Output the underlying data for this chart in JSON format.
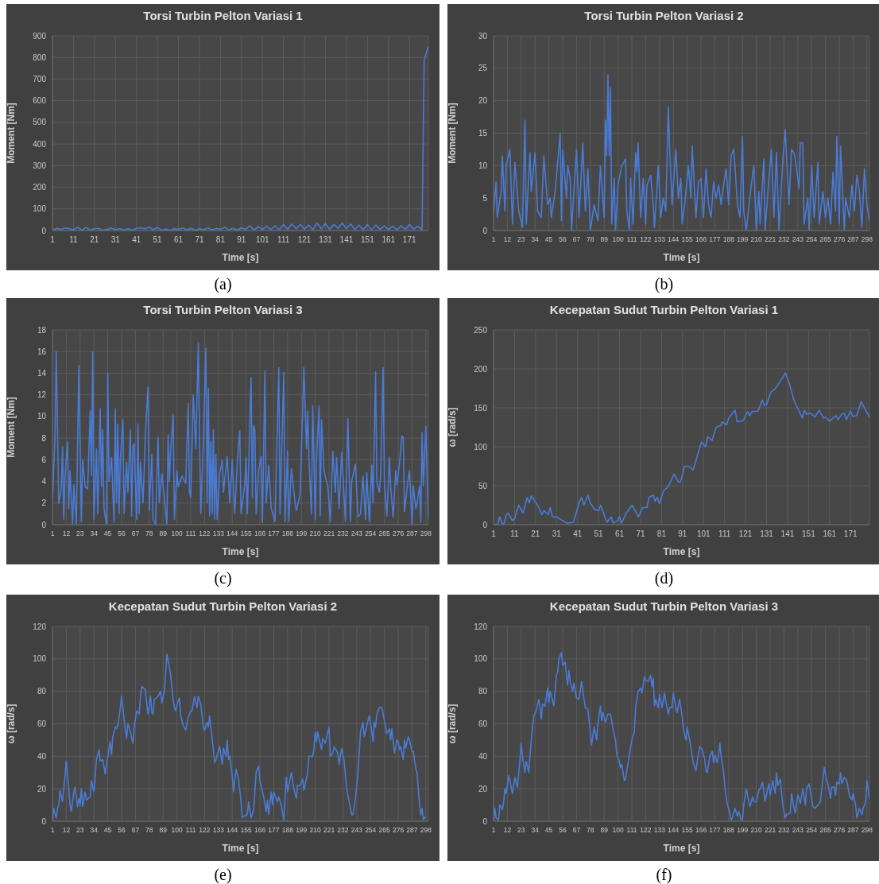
{
  "chart_data": [
    {
      "type": "line",
      "title": "Torsi Turbin Pelton Variasi 1",
      "xlabel": "Time [s]",
      "ylabel": "Moment [Nm]",
      "color": "#4a7bd6",
      "grid": true,
      "annotations": [
        "(a)"
      ],
      "xlim": [
        1,
        180
      ],
      "xticks": [
        1,
        11,
        21,
        31,
        41,
        51,
        61,
        71,
        81,
        91,
        101,
        111,
        121,
        131,
        141,
        151,
        161,
        171
      ],
      "ylim": [
        0,
        900
      ],
      "yticks": [
        0,
        100,
        200,
        300,
        400,
        500,
        600,
        700,
        800,
        900
      ],
      "x": [
        1,
        3,
        5,
        7,
        9,
        11,
        13,
        15,
        17,
        19,
        21,
        23,
        25,
        27,
        29,
        31,
        33,
        35,
        37,
        39,
        41,
        43,
        45,
        47,
        49,
        51,
        53,
        55,
        57,
        59,
        61,
        63,
        65,
        67,
        69,
        71,
        73,
        75,
        77,
        79,
        81,
        83,
        85,
        87,
        89,
        91,
        93,
        95,
        97,
        99,
        101,
        103,
        105,
        107,
        109,
        111,
        113,
        115,
        117,
        119,
        121,
        123,
        125,
        127,
        129,
        131,
        133,
        135,
        137,
        139,
        141,
        143,
        145,
        147,
        149,
        151,
        153,
        155,
        157,
        159,
        161,
        163,
        165,
        167,
        169,
        171,
        173,
        175,
        177,
        178,
        180
      ],
      "values": [
        0,
        10,
        5,
        12,
        8,
        3,
        15,
        2,
        14,
        3,
        8,
        10,
        1,
        5,
        12,
        4,
        9,
        3,
        8,
        2,
        10,
        12,
        8,
        16,
        4,
        14,
        2,
        6,
        1,
        8,
        5,
        12,
        3,
        10,
        2,
        8,
        4,
        12,
        3,
        10,
        5,
        15,
        4,
        10,
        3,
        12,
        6,
        22,
        2,
        18,
        5,
        20,
        4,
        22,
        3,
        28,
        5,
        30,
        8,
        28,
        6,
        25,
        4,
        35,
        8,
        32,
        6,
        28,
        10,
        35,
        8,
        30,
        5,
        25,
        4,
        28,
        3,
        25,
        5,
        22,
        4,
        20,
        3,
        22,
        5,
        28,
        6,
        20,
        3,
        790,
        850
      ]
    },
    {
      "type": "line",
      "title": "Torsi Turbin Pelton Variasi 2",
      "xlabel": "Time [s]",
      "ylabel": "Moment [Nm]",
      "color": "#4a7bd6",
      "grid": true,
      "annotations": [
        "(b)"
      ],
      "xlim": [
        1,
        300
      ],
      "xticks": [
        1,
        12,
        23,
        34,
        45,
        56,
        67,
        78,
        89,
        100,
        111,
        122,
        133,
        144,
        155,
        166,
        177,
        188,
        199,
        210,
        221,
        232,
        243,
        254,
        265,
        276,
        287,
        298
      ],
      "ylim": [
        0,
        30
      ],
      "yticks": [
        0,
        5,
        10,
        15,
        20,
        25,
        30
      ],
      "x": [
        1,
        3,
        4,
        7,
        8,
        10,
        11,
        14,
        16,
        18,
        21,
        24,
        26,
        27,
        30,
        31,
        34,
        36,
        39,
        41,
        44,
        46,
        47,
        50,
        54,
        55,
        56,
        59,
        60,
        62,
        63,
        67,
        69,
        72,
        74,
        76,
        78,
        81,
        84,
        86,
        89,
        90,
        91,
        92,
        93,
        94,
        95,
        97,
        98,
        100,
        103,
        106,
        107,
        109,
        110,
        112,
        114,
        115,
        116,
        118,
        120,
        122,
        123,
        126,
        128,
        129,
        132,
        134,
        136,
        138,
        140,
        141,
        143,
        146,
        148,
        150,
        151,
        153,
        156,
        158,
        159,
        162,
        164,
        166,
        168,
        170,
        172,
        174,
        176,
        178,
        180,
        182,
        184,
        186,
        188,
        190,
        192,
        193,
        195,
        197,
        199,
        200,
        202,
        206,
        208,
        210,
        212,
        213,
        216,
        217,
        220,
        222,
        224,
        226,
        228,
        231,
        233,
        236,
        238,
        240,
        241,
        244,
        245,
        247,
        248,
        251,
        252,
        254,
        256,
        259,
        260,
        263,
        265,
        267,
        269,
        271,
        273,
        274,
        276,
        277,
        280,
        281,
        284,
        286,
        288,
        290,
        292,
        294,
        296,
        298,
        300
      ],
      "values": [
        2.5,
        7.5,
        2,
        6,
        11.5,
        3,
        10,
        12.5,
        1,
        10.5,
        3,
        0.5,
        17,
        1,
        12,
        6,
        12,
        3,
        2,
        11.5,
        4,
        5,
        2,
        6,
        15,
        1.5,
        12.5,
        5,
        10,
        8,
        0,
        12.5,
        2,
        13.5,
        3,
        9.5,
        0,
        4,
        1.5,
        10,
        2,
        17,
        11.5,
        24,
        11.5,
        22,
        1,
        8,
        0,
        7,
        10,
        11,
        3,
        0,
        8,
        1,
        12,
        9,
        13.5,
        2,
        8,
        1,
        7,
        8.5,
        4,
        0.5,
        10,
        2,
        5,
        3,
        19,
        13,
        4,
        12.5,
        5,
        8,
        1,
        4,
        10,
        5,
        13,
        2,
        7.5,
        8,
        2,
        9.5,
        4,
        2,
        7.5,
        5,
        7,
        4,
        7,
        9.5,
        4,
        11.5,
        12.5,
        10,
        4,
        2,
        14.5,
        3,
        0,
        7,
        10,
        0,
        6,
        1,
        11,
        0,
        8,
        12.5,
        2,
        12,
        0,
        10.5,
        15.5,
        4,
        12.5,
        12,
        11,
        6.5,
        13.5,
        13.5,
        1,
        5,
        0,
        10,
        2,
        10.5,
        1,
        6,
        2,
        5,
        1,
        9,
        3,
        14.5,
        1,
        13,
        0,
        5,
        2,
        7,
        3,
        8.5,
        6,
        0.5,
        9.5,
        4,
        1.5
      ]
    },
    {
      "type": "line",
      "title": "Torsi Turbin Pelton Variasi 3",
      "xlabel": "Time [s]",
      "ylabel": "Moment [Nm]",
      "color": "#4a7bd6",
      "grid": true,
      "annotations": [
        "(c)"
      ],
      "xlim": [
        1,
        300
      ],
      "xticks": [
        1,
        12,
        23,
        34,
        45,
        56,
        67,
        78,
        89,
        100,
        111,
        122,
        133,
        144,
        155,
        166,
        177,
        188,
        199,
        210,
        221,
        232,
        243,
        254,
        265,
        276,
        287,
        298
      ],
      "ylim": [
        0,
        18
      ],
      "yticks": [
        0,
        2,
        4,
        6,
        8,
        10,
        12,
        14,
        16,
        18
      ],
      "x": [
        1,
        3,
        4,
        6,
        8,
        9,
        10,
        11,
        13,
        14,
        15,
        17,
        18,
        20,
        22,
        24,
        25,
        27,
        29,
        31,
        32,
        33,
        34,
        36,
        37,
        39,
        40,
        41,
        42,
        44,
        45,
        46,
        48,
        50,
        51,
        52,
        53,
        54,
        55,
        57,
        58,
        60,
        61,
        63,
        64,
        65,
        66,
        68,
        69,
        70,
        71,
        73,
        75,
        77,
        78,
        80,
        81,
        83,
        85,
        86,
        88,
        90,
        92,
        93,
        94,
        95,
        97,
        98,
        100,
        101,
        104,
        107,
        109,
        110,
        111,
        113,
        115,
        117,
        118,
        119,
        121,
        123,
        124,
        125,
        126,
        127,
        128,
        129,
        130,
        131,
        132,
        134,
        136,
        137,
        140,
        142,
        144,
        146,
        148,
        150,
        151,
        154,
        155,
        156,
        159,
        160,
        161,
        162,
        163,
        165,
        167,
        168,
        170,
        171,
        173,
        175,
        178,
        181,
        182,
        185,
        186,
        188,
        189,
        191,
        194,
        195,
        198,
        201,
        203,
        204,
        205,
        207,
        208,
        210,
        211,
        213,
        214,
        215,
        217,
        220,
        222,
        224,
        226,
        227,
        229,
        231,
        233,
        234,
        236,
        238,
        239,
        242,
        244,
        246,
        248,
        250,
        251,
        253,
        255,
        256,
        258,
        259,
        261,
        262,
        264,
        265,
        267,
        269,
        270,
        272,
        274,
        275,
        277,
        279,
        280,
        281,
        284,
        285,
        287,
        288,
        290,
        291,
        293,
        294,
        295,
        296,
        298,
        300
      ],
      "values": [
        2.3,
        8,
        16,
        2,
        3.3,
        7.2,
        0.5,
        4.5,
        7.7,
        1.5,
        5,
        0,
        3.7,
        0,
        14.7,
        0.3,
        6,
        3.5,
        3.3,
        10.5,
        4.5,
        16,
        0.5,
        7,
        1,
        10.7,
        3.5,
        8.8,
        1.5,
        0,
        14,
        4,
        6.2,
        0.2,
        10.7,
        2,
        9.3,
        1,
        6,
        9.7,
        1,
        5.8,
        3,
        8.8,
        0.8,
        7.2,
        7.5,
        0.5,
        9.3,
        1,
        5.8,
        2,
        8.5,
        12.7,
        1.3,
        6.5,
        0.5,
        0,
        8.1,
        2,
        4.7,
        2.5,
        0,
        8.3,
        4,
        6.8,
        10.2,
        0.5,
        5,
        3.5,
        4.5,
        3.8,
        11.2,
        3,
        2.5,
        12,
        7,
        16.8,
        8,
        1,
        7.5,
        16.3,
        2,
        12.6,
        0.8,
        7.7,
        1,
        8.8,
        0.5,
        6.5,
        0.5,
        4.7,
        6,
        3,
        6.3,
        2,
        6,
        1,
        5.8,
        8.7,
        1,
        3.8,
        6.2,
        1,
        13.6,
        2.5,
        9.2,
        8.7,
        1,
        5,
        6.3,
        0.2,
        14.2,
        2,
        5.5,
        1.5,
        0.3,
        14.5,
        1,
        14.1,
        0.3,
        6.8,
        0.3,
        5.2,
        2,
        1.3,
        2.8,
        14.5,
        7,
        10.5,
        6,
        1,
        11,
        0.5,
        6,
        11,
        0.8,
        9.7,
        5,
        3.5,
        0.3,
        6.8,
        3,
        6.2,
        1.5,
        6.7,
        2.5,
        0.3,
        9.8,
        0.3,
        4,
        5.6,
        0.7,
        1,
        4.5,
        0.5,
        4.8,
        0.3,
        5.5,
        2,
        14.1,
        4,
        3,
        4.5,
        14.5,
        4,
        0.8,
        6.2,
        3.5,
        0.7,
        5,
        3.7,
        5.6,
        8.2,
        8.1,
        1.2,
        4.3,
        5,
        0,
        3.6,
        1.5,
        2,
        3.6,
        0.2,
        8.5,
        3.6,
        9.1,
        0.5
      ]
    },
    {
      "type": "line",
      "title": "Kecepatan Sudut Turbin Pelton Variasi 1",
      "xlabel": "Time [s]",
      "ylabel": "ω [rad/s]",
      "color": "#4a7bd6",
      "grid": true,
      "annotations": [
        "(d)"
      ],
      "xlim": [
        1,
        180
      ],
      "xticks": [
        1,
        11,
        21,
        31,
        41,
        51,
        61,
        71,
        81,
        91,
        101,
        111,
        121,
        131,
        141,
        151,
        161,
        171
      ],
      "ylim": [
        0,
        250
      ],
      "yticks": [
        0,
        50,
        100,
        150,
        200,
        250
      ],
      "x": [
        1,
        3,
        4,
        5,
        6,
        7,
        8,
        10,
        11,
        13,
        15,
        17,
        18,
        19,
        22,
        24,
        25,
        27,
        28,
        29,
        31,
        34,
        36,
        39,
        42,
        43,
        44,
        46,
        47,
        49,
        51,
        52,
        54,
        55,
        57,
        58,
        60,
        61,
        62,
        64,
        67,
        70,
        72,
        74,
        75,
        77,
        78,
        79,
        80,
        82,
        84,
        87,
        89,
        90,
        92,
        94,
        96,
        98,
        100,
        102,
        103,
        105,
        107,
        109,
        110,
        112,
        113,
        116,
        117,
        120,
        122,
        123,
        124,
        127,
        129,
        130,
        131,
        133,
        135,
        137,
        139,
        140,
        142,
        144,
        148,
        149,
        150,
        152,
        154,
        156,
        158,
        159,
        161,
        164,
        165,
        167,
        168,
        169,
        171,
        172,
        174,
        176,
        178,
        180
      ],
      "values": [
        0,
        1,
        10,
        2,
        1,
        12,
        15,
        5,
        8,
        25,
        15,
        35,
        28,
        37,
        25,
        13,
        18,
        13,
        22,
        10,
        10,
        5,
        2,
        3,
        30,
        35,
        25,
        38,
        28,
        20,
        18,
        25,
        10,
        3,
        10,
        2,
        5,
        10,
        2,
        14,
        25,
        10,
        22,
        22,
        35,
        38,
        30,
        35,
        27,
        44,
        48,
        65,
        55,
        55,
        75,
        75,
        70,
        88,
        106,
        100,
        113,
        108,
        125,
        127,
        132,
        128,
        137,
        147,
        132,
        134,
        145,
        140,
        145,
        146,
        160,
        153,
        154,
        170,
        174,
        182,
        190,
        195,
        180,
        160,
        137,
        147,
        142,
        143,
        138,
        147,
        137,
        138,
        133,
        140,
        135,
        142,
        143,
        135,
        146,
        139,
        140,
        158,
        148,
        138
      ]
    },
    {
      "type": "line",
      "title": "Kecepatan Sudut Turbin Pelton Variasi 2",
      "xlabel": "Time [s]",
      "ylabel": "ω [rad/s]",
      "color": "#4a7bd6",
      "grid": true,
      "annotations": [
        "(e)"
      ],
      "xlim": [
        1,
        300
      ],
      "xticks": [
        1,
        12,
        23,
        34,
        45,
        56,
        67,
        78,
        89,
        100,
        111,
        122,
        133,
        144,
        155,
        166,
        177,
        188,
        199,
        210,
        221,
        232,
        243,
        254,
        265,
        276,
        287,
        298
      ],
      "ylim": [
        0,
        120
      ],
      "yticks": [
        0,
        20,
        40,
        60,
        80,
        100,
        120
      ],
      "x": [
        1,
        2,
        4,
        5,
        6,
        7,
        9,
        10,
        12,
        14,
        15,
        16,
        18,
        19,
        21,
        22,
        23,
        24,
        25,
        27,
        28,
        31,
        32,
        34,
        36,
        38,
        39,
        41,
        43,
        45,
        47,
        48,
        49,
        51,
        52,
        53,
        55,
        56,
        57,
        59,
        60,
        61,
        63,
        65,
        66,
        68,
        70,
        71,
        72,
        75,
        76,
        77,
        79,
        80,
        81,
        82,
        85,
        87,
        88,
        90,
        91,
        92,
        94,
        95,
        97,
        98,
        99,
        100,
        102,
        103,
        105,
        107,
        109,
        111,
        112,
        114,
        116,
        117,
        119,
        121,
        122,
        124,
        125,
        126,
        128,
        130,
        131,
        134,
        136,
        137,
        139,
        140,
        141,
        142,
        144,
        145,
        147,
        149,
        151,
        152,
        153,
        156,
        157,
        159,
        161,
        163,
        165,
        166,
        169,
        171,
        172,
        173,
        175,
        176,
        177,
        180,
        181,
        183,
        185,
        187,
        188,
        191,
        193,
        195,
        196,
        198,
        200,
        201,
        204,
        205,
        208,
        209,
        210,
        211,
        212,
        215,
        216,
        218,
        221,
        222,
        224,
        225,
        228,
        229,
        231,
        233,
        235,
        236,
        239,
        240,
        242,
        244,
        246,
        248,
        249,
        252,
        253,
        255,
        256,
        257,
        258,
        259,
        261,
        263,
        264,
        266,
        267,
        269,
        270,
        271,
        273,
        275,
        276,
        277,
        278,
        280,
        281,
        282,
        284,
        285,
        287,
        288,
        290,
        291,
        293,
        294,
        295,
        296,
        298
      ],
      "values": [
        0,
        8,
        2,
        8,
        10,
        19,
        12,
        20,
        37,
        20,
        10,
        6,
        18,
        21,
        9,
        14,
        10,
        20,
        9,
        18,
        13,
        15,
        25,
        18,
        38,
        44,
        37,
        38,
        29,
        40,
        49,
        41,
        52,
        58,
        57,
        59,
        70,
        77,
        70,
        56,
        51,
        60,
        55,
        48,
        58,
        68,
        66,
        77,
        83,
        81,
        72,
        66,
        77,
        67,
        66,
        75,
        77,
        80,
        73,
        80,
        90,
        103,
        95,
        90,
        75,
        70,
        68,
        72,
        76,
        65,
        59,
        56,
        64,
        68,
        68,
        77,
        70,
        77,
        72,
        58,
        56,
        61,
        58,
        65,
        51,
        36,
        38,
        46,
        35,
        45,
        40,
        50,
        38,
        40,
        28,
        18,
        32,
        26,
        12,
        2,
        3,
        4,
        12,
        2,
        7,
        30,
        34,
        25,
        15,
        6,
        13,
        4,
        18,
        10,
        18,
        12,
        15,
        10,
        0.5,
        27,
        18,
        30,
        20,
        14,
        22,
        22,
        26,
        19,
        30,
        40,
        40,
        45,
        55,
        49,
        55,
        44,
        51,
        48,
        58,
        40,
        42,
        46,
        42,
        35,
        45,
        37,
        20,
        16,
        4,
        4,
        14,
        30,
        55,
        61,
        52,
        62,
        65,
        55,
        49,
        61,
        58,
        66,
        70,
        70,
        66,
        58,
        54,
        57,
        50,
        57,
        42,
        50,
        49,
        44,
        46,
        38,
        50,
        45,
        52,
        50,
        43,
        43,
        32,
        30,
        10,
        4,
        8,
        1,
        3
      ]
    },
    {
      "type": "line",
      "title": "Kecepatan Sudut Turbin Pelton Variasi 3",
      "xlabel": "Time [s]",
      "ylabel": "ω [rad/s]",
      "color": "#4a7bd6",
      "grid": true,
      "annotations": [
        "(f)"
      ],
      "xlim": [
        1,
        300
      ],
      "xticks": [
        1,
        12,
        23,
        34,
        45,
        56,
        67,
        78,
        89,
        100,
        111,
        122,
        133,
        144,
        155,
        166,
        177,
        188,
        199,
        210,
        221,
        232,
        243,
        254,
        265,
        276,
        287,
        298
      ],
      "ylim": [
        0,
        120
      ],
      "yticks": [
        0,
        20,
        40,
        60,
        80,
        100,
        120
      ],
      "x": [
        1,
        2,
        3,
        5,
        6,
        8,
        9,
        10,
        11,
        13,
        14,
        16,
        18,
        20,
        22,
        23,
        24,
        26,
        27,
        29,
        31,
        33,
        35,
        37,
        38,
        39,
        40,
        42,
        44,
        45,
        46,
        47,
        49,
        51,
        52,
        53,
        55,
        56,
        58,
        59,
        60,
        61,
        62,
        64,
        65,
        67,
        69,
        71,
        73,
        74,
        76,
        78,
        79,
        81,
        83,
        84,
        86,
        87,
        88,
        90,
        92,
        94,
        96,
        98,
        99,
        101,
        102,
        103,
        105,
        106,
        108,
        109,
        111,
        113,
        114,
        116,
        118,
        119,
        121,
        122,
        124,
        126,
        127,
        128,
        129,
        130,
        132,
        133,
        135,
        137,
        138,
        140,
        141,
        143,
        144,
        146,
        147,
        149,
        151,
        152,
        154,
        155,
        157,
        159,
        160,
        162,
        164,
        165,
        167,
        169,
        170,
        171,
        173,
        175,
        176,
        177,
        179,
        180,
        181,
        182,
        184,
        185,
        187,
        189,
        190,
        191,
        193,
        195,
        196,
        198,
        199,
        200,
        202,
        204,
        205,
        207,
        208,
        210,
        212,
        213,
        215,
        217,
        219,
        220,
        221,
        223,
        225,
        226,
        227,
        229,
        231,
        233,
        234,
        237,
        238,
        240,
        241,
        243,
        245,
        247,
        249,
        250,
        252,
        254,
        255,
        257,
        259,
        261,
        263,
        264,
        266,
        267,
        269,
        270,
        272,
        273,
        274,
        276,
        277,
        278,
        280,
        282,
        284,
        286,
        287,
        289,
        290,
        292,
        294,
        295,
        297,
        298,
        300
      ],
      "values": [
        0,
        8,
        2,
        1,
        10,
        7,
        11,
        20,
        17,
        28,
        25,
        17,
        27,
        21,
        38,
        48,
        40,
        30,
        37,
        30,
        50,
        65,
        68,
        75,
        70,
        63,
        72,
        71,
        82,
        73,
        80,
        77,
        71,
        90,
        92,
        100,
        104,
        96,
        98,
        90,
        84,
        93,
        86,
        80,
        85,
        76,
        75,
        86,
        75,
        70,
        69,
        55,
        47,
        58,
        50,
        60,
        71,
        62,
        67,
        61,
        66,
        66,
        57,
        50,
        41,
        37,
        33,
        35,
        25,
        26,
        36,
        41,
        50,
        55,
        70,
        80,
        82,
        79,
        89,
        87,
        86,
        90,
        83,
        88,
        71,
        75,
        70,
        78,
        70,
        79,
        74,
        66,
        70,
        70,
        79,
        70,
        67,
        75,
        65,
        57,
        50,
        58,
        50,
        40,
        36,
        31,
        42,
        46,
        44,
        38,
        31,
        30,
        40,
        43,
        36,
        41,
        36,
        41,
        48,
        40,
        30,
        21,
        10,
        5,
        1,
        2,
        8,
        3,
        6,
        1,
        1,
        10,
        20,
        12,
        9,
        15,
        12,
        12,
        19,
        20,
        24,
        12,
        20,
        23,
        16,
        25,
        17,
        30,
        22,
        26,
        10,
        2,
        4,
        5,
        17,
        8,
        5,
        16,
        11,
        20,
        10,
        20,
        23,
        14,
        9,
        8,
        10,
        12,
        26,
        33,
        25,
        23,
        14,
        21,
        21,
        16,
        24,
        23,
        30,
        23,
        27,
        25,
        16,
        13,
        17,
        10,
        2,
        8,
        4,
        8,
        12,
        25,
        14
      ]
    }
  ]
}
